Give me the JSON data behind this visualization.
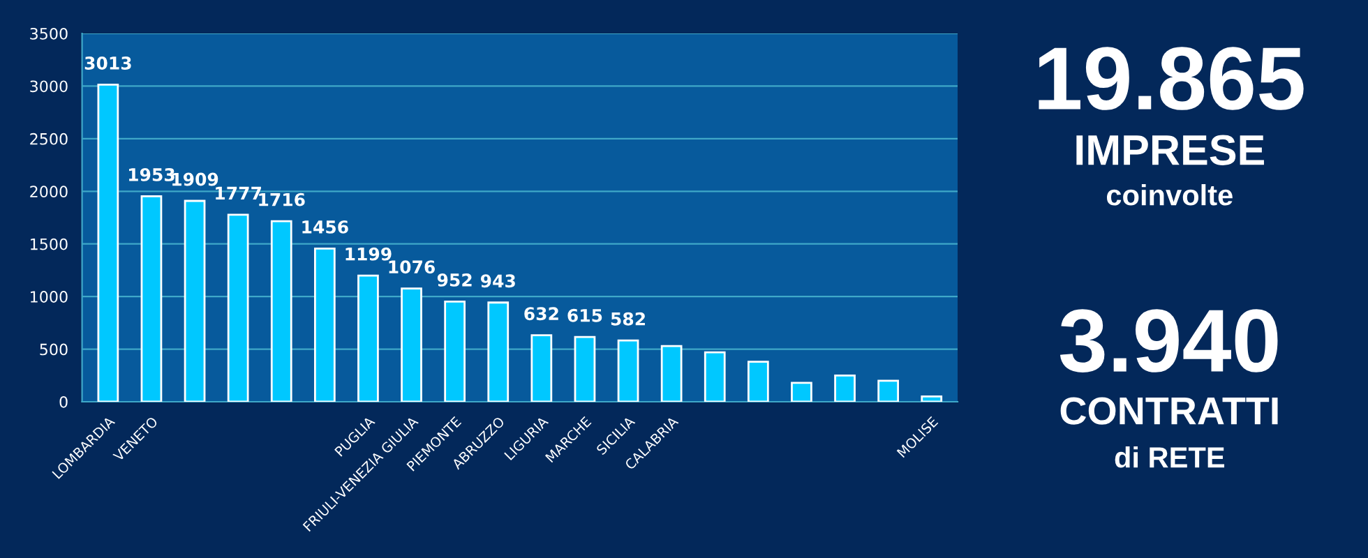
{
  "chart_data": {
    "type": "bar",
    "categories": [
      "LOMBARDIA",
      "VENETO",
      null,
      null,
      null,
      null,
      "PUGLIA",
      "FRIULI-VENEZIA GIULIA",
      "PIEMONTE",
      "ABRUZZO",
      "LIGURIA",
      "MARCHE",
      "SICILIA",
      "CALABRIA",
      null,
      null,
      null,
      null,
      null,
      "MOLISE"
    ],
    "values": [
      3013,
      1953,
      1909,
      1777,
      1716,
      1456,
      1199,
      1076,
      952,
      943,
      632,
      615,
      582,
      530,
      470,
      380,
      180,
      250,
      200,
      50
    ],
    "value_labels": [
      "3013",
      "1953",
      "1909",
      "1777",
      "1716",
      "1456",
      "1199",
      "1076",
      "952",
      "943",
      "632",
      "615",
      "582",
      null,
      null,
      null,
      null,
      null,
      null,
      null
    ],
    "color": "#00c8ff",
    "ylim": [
      0,
      3500
    ],
    "yticks": [
      0,
      500,
      1000,
      1500,
      2000,
      2500,
      3000,
      3500
    ],
    "grid": "y",
    "annotations": [
      "19.865",
      "IMPRESE",
      "coinvolte",
      "3.940",
      "CONTRATTI",
      "di RETE"
    ]
  }
}
